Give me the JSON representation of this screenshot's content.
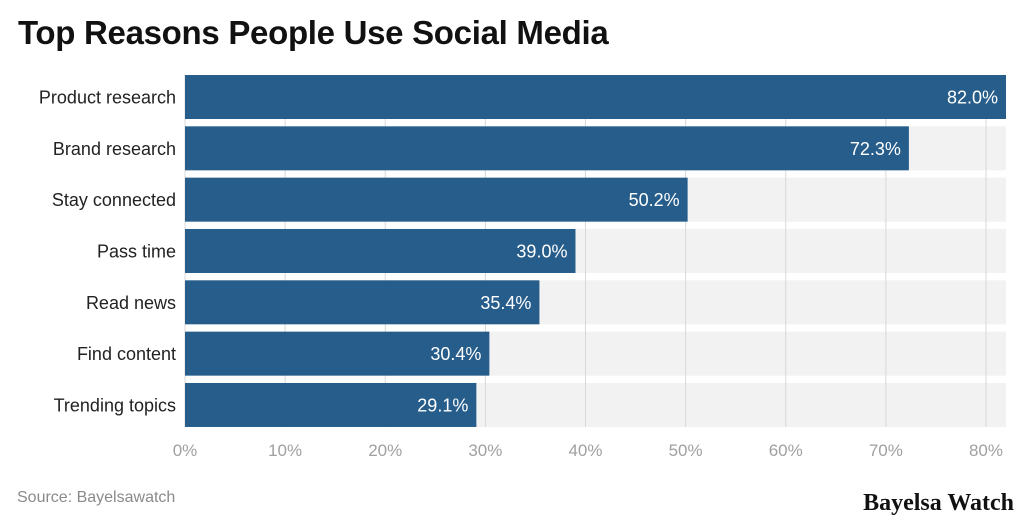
{
  "title": "Top Reasons People Use Social Media",
  "source": "Source: Bayelsawatch",
  "brand": "Bayelsa Watch",
  "colors": {
    "bar": "#275d8b",
    "row_bg": "#f2f2f2",
    "grid": "#d8d8d8"
  },
  "chart_data": {
    "type": "bar",
    "orientation": "horizontal",
    "title": "Top Reasons People Use Social Media",
    "xlabel": "",
    "ylabel": "",
    "categories": [
      "Product research",
      "Brand research",
      "Stay connected",
      "Pass time",
      "Read news",
      "Find content",
      "Trending topics"
    ],
    "values": [
      82.0,
      72.3,
      50.2,
      39.0,
      35.4,
      30.4,
      29.1
    ],
    "value_labels": [
      "82.0%",
      "72.3%",
      "50.2%",
      "39.0%",
      "35.4%",
      "30.4%",
      "29.1%"
    ],
    "xlim": [
      0,
      82
    ],
    "ticks": [
      0,
      10,
      20,
      30,
      40,
      50,
      60,
      70,
      80
    ],
    "tick_labels": [
      "0%",
      "10%",
      "20%",
      "30%",
      "40%",
      "50%",
      "60%",
      "70%",
      "80%"
    ],
    "grid": true,
    "legend": "none"
  }
}
